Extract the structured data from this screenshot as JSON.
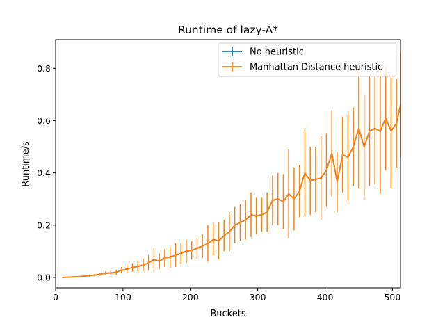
{
  "chart_data": {
    "type": "line",
    "title": "Runtime of lazy-A*",
    "xlabel": "Buckets",
    "ylabel": "Runtime/s",
    "xlim": [
      0,
      512
    ],
    "ylim": [
      -0.04,
      0.91
    ],
    "xticks": [
      0,
      100,
      200,
      300,
      400,
      500
    ],
    "yticks": [
      0.0,
      0.2,
      0.4,
      0.6,
      0.8
    ],
    "grid": false,
    "legend_position": "top-right",
    "x": [
      10,
      18,
      26,
      34,
      42,
      50,
      58,
      66,
      74,
      82,
      90,
      98,
      106,
      114,
      122,
      130,
      138,
      146,
      154,
      162,
      170,
      178,
      186,
      194,
      202,
      210,
      218,
      226,
      234,
      242,
      250,
      258,
      266,
      274,
      282,
      290,
      298,
      306,
      314,
      322,
      330,
      338,
      346,
      354,
      362,
      370,
      378,
      386,
      394,
      402,
      410,
      418,
      426,
      434,
      442,
      450,
      458,
      466,
      474,
      482,
      490,
      498,
      506,
      512
    ],
    "series": [
      {
        "name": "No heuristic",
        "color": "#1f77b4",
        "values": [
          0.0,
          0.001,
          0.002,
          0.003,
          0.005,
          0.007,
          0.009,
          0.012,
          0.016,
          0.017,
          0.02,
          0.028,
          0.032,
          0.038,
          0.042,
          0.047,
          0.056,
          0.068,
          0.062,
          0.075,
          0.078,
          0.085,
          0.092,
          0.1,
          0.103,
          0.112,
          0.12,
          0.13,
          0.145,
          0.14,
          0.16,
          0.175,
          0.2,
          0.21,
          0.22,
          0.24,
          0.235,
          0.24,
          0.25,
          0.295,
          0.3,
          0.29,
          0.32,
          0.3,
          0.33,
          0.4,
          0.37,
          0.375,
          0.38,
          0.41,
          0.475,
          0.365,
          0.47,
          0.46,
          0.5,
          0.57,
          0.5,
          0.56,
          0.57,
          0.56,
          0.61,
          0.56,
          0.59,
          0.66
        ],
        "errors": [
          0,
          0,
          0,
          0,
          0,
          0,
          0,
          0,
          0,
          0,
          0,
          0,
          0,
          0,
          0,
          0,
          0,
          0,
          0,
          0,
          0,
          0,
          0,
          0,
          0,
          0,
          0,
          0,
          0,
          0,
          0,
          0,
          0,
          0,
          0,
          0,
          0,
          0,
          0,
          0,
          0,
          0,
          0,
          0,
          0,
          0,
          0,
          0,
          0,
          0,
          0,
          0,
          0,
          0,
          0,
          0,
          0,
          0,
          0,
          0,
          0,
          0,
          0,
          0
        ]
      },
      {
        "name": "Manhattan Distance heuristic",
        "color": "#ff7f0e",
        "values": [
          0.0,
          0.001,
          0.002,
          0.003,
          0.005,
          0.007,
          0.009,
          0.012,
          0.016,
          0.017,
          0.02,
          0.028,
          0.032,
          0.038,
          0.042,
          0.047,
          0.056,
          0.068,
          0.062,
          0.075,
          0.078,
          0.085,
          0.092,
          0.1,
          0.103,
          0.112,
          0.12,
          0.13,
          0.145,
          0.14,
          0.16,
          0.175,
          0.2,
          0.21,
          0.22,
          0.24,
          0.235,
          0.24,
          0.25,
          0.295,
          0.3,
          0.29,
          0.32,
          0.3,
          0.33,
          0.4,
          0.37,
          0.375,
          0.38,
          0.41,
          0.475,
          0.365,
          0.47,
          0.46,
          0.5,
          0.57,
          0.5,
          0.56,
          0.57,
          0.56,
          0.61,
          0.56,
          0.59,
          0.66
        ],
        "errors": [
          0.001,
          0.002,
          0.002,
          0.003,
          0.003,
          0.004,
          0.005,
          0.006,
          0.007,
          0.008,
          0.01,
          0.012,
          0.014,
          0.016,
          0.02,
          0.025,
          0.03,
          0.045,
          0.03,
          0.035,
          0.04,
          0.045,
          0.04,
          0.045,
          0.035,
          0.04,
          0.045,
          0.07,
          0.06,
          0.07,
          0.06,
          0.075,
          0.07,
          0.07,
          0.075,
          0.085,
          0.07,
          0.065,
          0.075,
          0.095,
          0.1,
          0.105,
          0.17,
          0.12,
          0.1,
          0.165,
          0.13,
          0.125,
          0.16,
          0.14,
          0.165,
          0.115,
          0.145,
          0.17,
          0.15,
          0.23,
          0.2,
          0.21,
          0.215,
          0.24,
          0.2,
          0.22,
          0.17,
          0.2
        ]
      }
    ]
  }
}
